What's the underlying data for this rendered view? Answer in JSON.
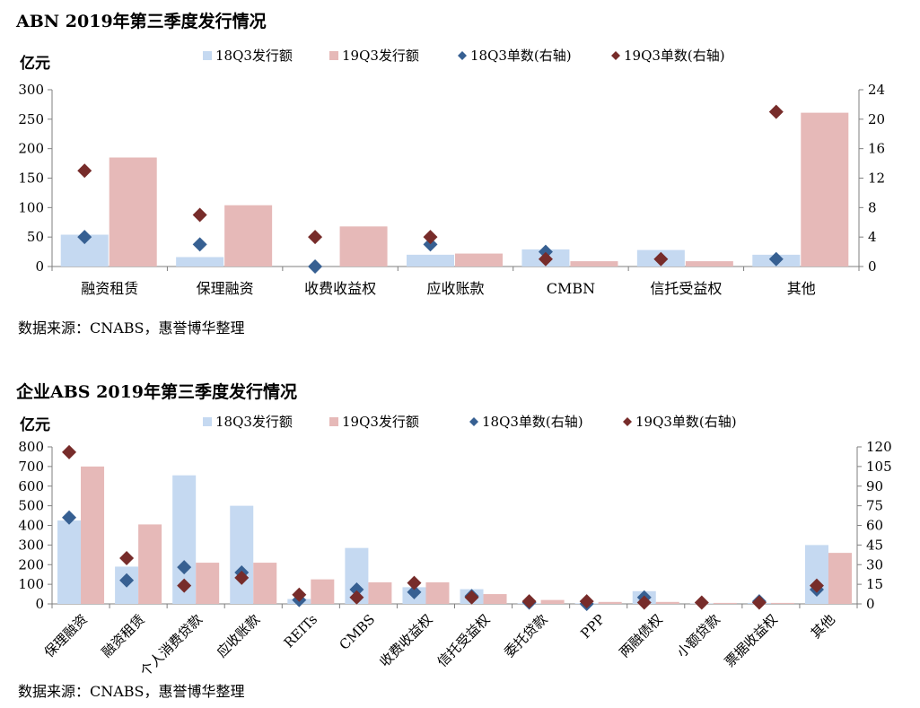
{
  "colors": {
    "s18": "#c5d9f1",
    "s19": "#e6b9b8",
    "m18": "#376092",
    "m19": "#772c2a",
    "axis": "#7f7f7f"
  },
  "chart_data": [
    {
      "type": "bar",
      "title": "ABN 2019年第三季度发行情况",
      "ylabel": "亿元",
      "ylim": [
        0,
        300
      ],
      "yticks": [
        0,
        50,
        100,
        150,
        200,
        250,
        300
      ],
      "y2lim": [
        0,
        24
      ],
      "y2ticks": [
        0,
        4,
        8,
        12,
        16,
        20,
        24
      ],
      "legend": [
        "18Q3发行额",
        "19Q3发行额",
        "18Q3单数(右轴)",
        "19Q3单数(右轴)"
      ],
      "legend_position": "top",
      "categories": [
        "融资租赁",
        "保理融资",
        "收费收益权",
        "应收账款",
        "CMBN",
        "信托受益权",
        "其他"
      ],
      "series": [
        {
          "name": "18Q3发行额",
          "kind": "bar",
          "axis": "left",
          "values": [
            54,
            16,
            0,
            20,
            29,
            28,
            20
          ]
        },
        {
          "name": "19Q3发行额",
          "kind": "bar",
          "axis": "left",
          "values": [
            185,
            104,
            68,
            22,
            9,
            9,
            261
          ]
        },
        {
          "name": "18Q3单数(右轴)",
          "kind": "marker",
          "axis": "right",
          "values": [
            4,
            3,
            0,
            3,
            2,
            null,
            1
          ]
        },
        {
          "name": "19Q3单数(右轴)",
          "kind": "marker",
          "axis": "right",
          "values": [
            13,
            7,
            4,
            4,
            1,
            1,
            21
          ]
        }
      ],
      "source": "数据来源：CNABS，惠誉博华整理"
    },
    {
      "type": "bar",
      "title": "企业ABS 2019年第三季度发行情况",
      "ylabel": "亿元",
      "ylim": [
        0,
        800
      ],
      "yticks": [
        0,
        100,
        200,
        300,
        400,
        500,
        600,
        700,
        800
      ],
      "y2lim": [
        0,
        120
      ],
      "y2ticks": [
        0,
        15,
        30,
        45,
        60,
        75,
        90,
        105,
        120
      ],
      "legend": [
        "18Q3发行额",
        "19Q3发行额",
        "18Q3单数(右轴)",
        "19Q3单数(右轴)"
      ],
      "legend_position": "top",
      "categories": [
        "保理融资",
        "融资租赁",
        "个人消费贷款",
        "应收账款",
        "REITs",
        "CMBS",
        "收费收益权",
        "信托受益权",
        "委托贷款",
        "PPP",
        "两融债权",
        "小额贷款",
        "票据收益权",
        "其他"
      ],
      "series": [
        {
          "name": "18Q3发行额",
          "kind": "bar",
          "axis": "left",
          "values": [
            425,
            190,
            655,
            500,
            25,
            285,
            85,
            75,
            3,
            3,
            65,
            2,
            5,
            300
          ]
        },
        {
          "name": "19Q3发行额",
          "kind": "bar",
          "axis": "left",
          "values": [
            700,
            405,
            210,
            210,
            125,
            110,
            110,
            50,
            20,
            10,
            10,
            5,
            5,
            260
          ]
        },
        {
          "name": "18Q3单数(右轴)",
          "kind": "marker",
          "axis": "right",
          "values": [
            66,
            18,
            28,
            24,
            3,
            11,
            9,
            6,
            1,
            0,
            5,
            null,
            2,
            11
          ]
        },
        {
          "name": "19Q3单数(右轴)",
          "kind": "marker",
          "axis": "right",
          "values": [
            116,
            35,
            14,
            20,
            7,
            5,
            16,
            5,
            2,
            2,
            1,
            1,
            1,
            14
          ]
        }
      ],
      "source": "数据来源：CNABS，惠誉博华整理"
    }
  ]
}
